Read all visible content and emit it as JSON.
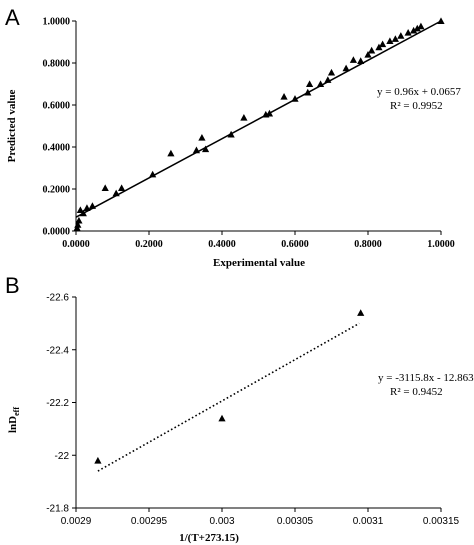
{
  "panels": {
    "a": {
      "letter": "A"
    },
    "b": {
      "letter": "B"
    }
  },
  "colors": {
    "marker": "#000000",
    "line": "#000000",
    "axis": "#000000"
  },
  "chart_data": [
    {
      "panel": "A",
      "type": "scatter",
      "xlabel": "Experimental value",
      "ylabel": "Predicted value",
      "xlim": [
        0.0,
        1.0
      ],
      "ylim": [
        0.0,
        1.0
      ],
      "xticks": [
        "0.0000",
        "0.2000",
        "0.4000",
        "0.6000",
        "0.8000",
        "1.0000"
      ],
      "yticks": [
        "0.0000",
        "0.2000",
        "0.4000",
        "0.6000",
        "0.8000",
        "1.0000"
      ],
      "grid": false,
      "marker": "triangle",
      "trendline": {
        "style": "solid",
        "slope": 0.96,
        "intercept": 0.0657,
        "x_range": [
          0.0,
          1.0
        ]
      },
      "equation": "y = 0.96x + 0.0657",
      "r2": "R² = 0.9952",
      "points": [
        {
          "x": 0.003,
          "y": 0.015
        },
        {
          "x": 0.005,
          "y": 0.03
        },
        {
          "x": 0.008,
          "y": 0.05
        },
        {
          "x": 0.012,
          "y": 0.1
        },
        {
          "x": 0.02,
          "y": 0.085
        },
        {
          "x": 0.03,
          "y": 0.11
        },
        {
          "x": 0.045,
          "y": 0.12
        },
        {
          "x": 0.08,
          "y": 0.205
        },
        {
          "x": 0.11,
          "y": 0.18
        },
        {
          "x": 0.125,
          "y": 0.205
        },
        {
          "x": 0.21,
          "y": 0.27
        },
        {
          "x": 0.26,
          "y": 0.37
        },
        {
          "x": 0.33,
          "y": 0.385
        },
        {
          "x": 0.345,
          "y": 0.445
        },
        {
          "x": 0.355,
          "y": 0.39
        },
        {
          "x": 0.425,
          "y": 0.46
        },
        {
          "x": 0.46,
          "y": 0.54
        },
        {
          "x": 0.52,
          "y": 0.555
        },
        {
          "x": 0.53,
          "y": 0.56
        },
        {
          "x": 0.57,
          "y": 0.64
        },
        {
          "x": 0.6,
          "y": 0.63
        },
        {
          "x": 0.635,
          "y": 0.66
        },
        {
          "x": 0.64,
          "y": 0.7
        },
        {
          "x": 0.67,
          "y": 0.7
        },
        {
          "x": 0.69,
          "y": 0.72
        },
        {
          "x": 0.7,
          "y": 0.755
        },
        {
          "x": 0.74,
          "y": 0.775
        },
        {
          "x": 0.76,
          "y": 0.815
        },
        {
          "x": 0.78,
          "y": 0.81
        },
        {
          "x": 0.8,
          "y": 0.84
        },
        {
          "x": 0.81,
          "y": 0.86
        },
        {
          "x": 0.83,
          "y": 0.875
        },
        {
          "x": 0.84,
          "y": 0.89
        },
        {
          "x": 0.86,
          "y": 0.905
        },
        {
          "x": 0.875,
          "y": 0.915
        },
        {
          "x": 0.89,
          "y": 0.93
        },
        {
          "x": 0.91,
          "y": 0.945
        },
        {
          "x": 0.925,
          "y": 0.955
        },
        {
          "x": 0.935,
          "y": 0.965
        },
        {
          "x": 0.945,
          "y": 0.975
        },
        {
          "x": 1.0,
          "y": 1.0
        }
      ]
    },
    {
      "panel": "B",
      "type": "scatter",
      "xlabel": "1/(T+273.15)",
      "ylabel": "lnD",
      "ylabel_sub": "eff",
      "xlim": [
        0.0029,
        0.00315
      ],
      "ylim": [
        -21.8,
        -22.6
      ],
      "y_reversed": true,
      "xticks": [
        "0.0029",
        "0.00295",
        "0.003",
        "0.00305",
        "0.0031",
        "0.00315"
      ],
      "yticks": [
        "-21.8",
        "-22",
        "-22.2",
        "-22.4",
        "-22.6"
      ],
      "grid": false,
      "marker": "triangle",
      "trendline": {
        "style": "dotted",
        "x_range": [
          0.002915,
          0.003094
        ],
        "y_range": [
          -21.94,
          -22.5
        ]
      },
      "equation": "y = -3115.8x - 12.863",
      "r2": "R² = 0.9452",
      "points": [
        {
          "x": 0.002915,
          "y": -21.98
        },
        {
          "x": 0.003,
          "y": -22.14
        },
        {
          "x": 0.003095,
          "y": -22.54
        }
      ]
    }
  ]
}
